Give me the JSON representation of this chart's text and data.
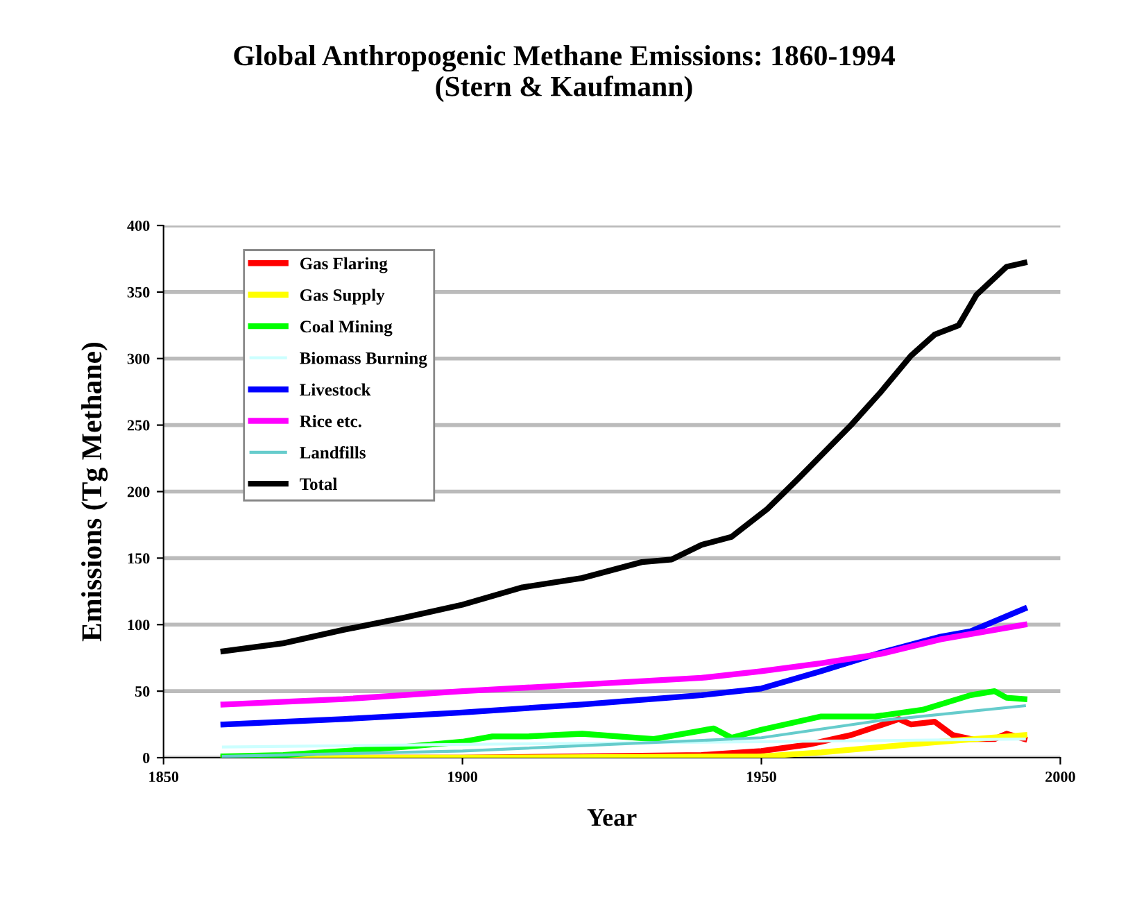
{
  "chart_data": {
    "type": "line",
    "title": "Global Anthropogenic Methane Emissions: 1860-1994\n(Stern & Kaufmann)",
    "xlabel": "Year",
    "ylabel": "Emissions (Tg Methane)",
    "xlim": [
      1850,
      2000
    ],
    "xticks": [
      1850,
      1900,
      1950,
      2000
    ],
    "ylim": [
      0,
      400
    ],
    "yticks": [
      0,
      50,
      100,
      150,
      200,
      250,
      300,
      350,
      400
    ],
    "grid": "y",
    "legend": "top left",
    "series": [
      {
        "name": "Gas Flaring",
        "color": "#ff0000",
        "x": [
          1860,
          1900,
          1920,
          1940,
          1950,
          1958,
          1965,
          1973,
          1975,
          1979,
          1982,
          1985,
          1989,
          1991,
          1994
        ],
        "values": [
          0,
          0,
          1,
          2,
          5,
          10,
          17,
          29,
          25,
          27,
          17,
          14,
          14,
          18,
          14
        ]
      },
      {
        "name": "Gas Supply",
        "color": "#ffff00",
        "x": [
          1860,
          1900,
          1950,
          1960,
          1970,
          1980,
          1994
        ],
        "values": [
          0,
          0,
          1,
          4,
          8,
          12,
          17
        ]
      },
      {
        "name": "Coal Mining",
        "color": "#00ff00",
        "x": [
          1860,
          1870,
          1880,
          1890,
          1900,
          1905,
          1911,
          1920,
          1932,
          1942,
          1945,
          1950,
          1960,
          1969,
          1977,
          1985,
          1989,
          1991,
          1994
        ],
        "values": [
          1,
          2,
          5,
          8,
          12,
          16,
          16,
          18,
          14,
          22,
          15,
          21,
          31,
          31,
          36,
          47,
          50,
          45,
          44
        ]
      },
      {
        "name": "Biomass Burning",
        "color": "#ccffff",
        "x": [
          1860,
          1900,
          1950,
          1994
        ],
        "values": [
          8,
          10,
          12,
          14
        ]
      },
      {
        "name": "Livestock",
        "color": "#0000ff",
        "x": [
          1860,
          1880,
          1900,
          1920,
          1940,
          1950,
          1960,
          1970,
          1980,
          1985,
          1994
        ],
        "values": [
          25,
          29,
          34,
          40,
          47,
          52,
          65,
          79,
          91,
          95,
          112
        ]
      },
      {
        "name": "Rice etc.",
        "color": "#ff00ff",
        "x": [
          1860,
          1880,
          1900,
          1920,
          1940,
          1950,
          1960,
          1970,
          1980,
          1994
        ],
        "values": [
          40,
          44,
          50,
          55,
          60,
          65,
          71,
          78,
          89,
          100
        ]
      },
      {
        "name": "Landfills",
        "color": "#66cccc",
        "x": [
          1860,
          1900,
          1950,
          1970,
          1994
        ],
        "values": [
          1,
          5,
          15,
          28,
          39
        ]
      },
      {
        "name": "Total",
        "color": "#000000",
        "x": [
          1860,
          1870,
          1880,
          1890,
          1900,
          1910,
          1920,
          1930,
          1935,
          1940,
          1945,
          1951,
          1956,
          1965,
          1970,
          1975,
          1979,
          1983,
          1986,
          1991,
          1994
        ],
        "values": [
          80,
          86,
          96,
          105,
          115,
          128,
          135,
          147,
          149,
          160,
          166,
          187,
          209,
          250,
          275,
          302,
          318,
          325,
          348,
          369,
          372
        ]
      }
    ]
  }
}
